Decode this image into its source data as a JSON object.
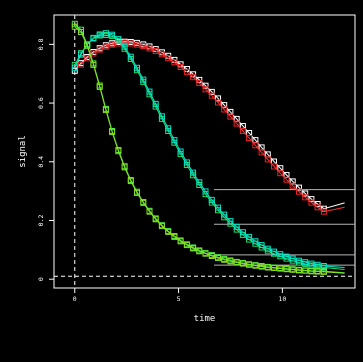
{
  "chart_data": {
    "type": "line",
    "title": "",
    "xlabel": "time",
    "ylabel": "signal",
    "xlim": [
      -1.0,
      13.5
    ],
    "ylim": [
      -0.03,
      0.9
    ],
    "grid": false,
    "xticks": [
      0,
      5,
      10
    ],
    "xtick_labels": [
      "0",
      "5",
      "10"
    ],
    "yticks": [
      0.0,
      0.2,
      0.4,
      0.6,
      0.8
    ],
    "ytick_labels": [
      "0",
      "0.2",
      "0.4",
      "0.6",
      "0.8"
    ],
    "reference_lines": [
      {
        "axis": "x",
        "value": 0
      },
      {
        "axis": "y",
        "value": 0.01
      }
    ],
    "colors": {
      "background": "#000000",
      "frame": "#ffffff",
      "reference_line": "#ffffff",
      "connector": "#b4b4b4"
    },
    "connectors": [
      {
        "y": 0.305
      },
      {
        "y": 0.187
      },
      {
        "y": 0.083
      },
      {
        "y": 0.048
      }
    ],
    "series": [
      {
        "line_color": "#ffffff",
        "marker_color": "#ffffff",
        "x": [
          0.0,
          0.3,
          0.6,
          0.9,
          1.2,
          1.5,
          1.8,
          2.1,
          2.4,
          2.7,
          3.0,
          3.3,
          3.6,
          3.9,
          4.2,
          4.5,
          4.8,
          5.1,
          5.4,
          5.7,
          6.0,
          6.3,
          6.6,
          6.9,
          7.2,
          7.5,
          7.8,
          8.1,
          8.4,
          8.7,
          9.0,
          9.3,
          9.6,
          9.9,
          10.2,
          10.5,
          10.8,
          11.1,
          11.4,
          11.7,
          12.0
        ],
        "y": [
          0.71,
          0.736,
          0.757,
          0.774,
          0.787,
          0.797,
          0.804,
          0.808,
          0.809,
          0.808,
          0.805,
          0.8,
          0.793,
          0.784,
          0.773,
          0.761,
          0.747,
          0.732,
          0.716,
          0.698,
          0.679,
          0.659,
          0.638,
          0.616,
          0.593,
          0.57,
          0.546,
          0.522,
          0.498,
          0.474,
          0.449,
          0.425,
          0.401,
          0.378,
          0.355,
          0.333,
          0.312,
          0.292,
          0.273,
          0.256,
          0.24
        ],
        "line_extend": {
          "x": 13.0,
          "y": 0.26
        }
      },
      {
        "line_color": "#ff3333",
        "marker_color": "#ee2222",
        "x": [
          0.3,
          0.6,
          0.9,
          1.2,
          1.5,
          1.8,
          2.1,
          2.4,
          2.7,
          3.0,
          3.3,
          3.6,
          3.9,
          4.2,
          4.5,
          4.8,
          5.1,
          5.4,
          5.7,
          6.0,
          6.3,
          6.6,
          6.9,
          7.2,
          7.5,
          7.8,
          8.1,
          8.4,
          8.7,
          9.0,
          9.3,
          9.6,
          9.9,
          10.2,
          10.5,
          10.8,
          11.1,
          11.4,
          11.7,
          12.0
        ],
        "y": [
          0.731,
          0.752,
          0.769,
          0.782,
          0.792,
          0.799,
          0.803,
          0.804,
          0.803,
          0.799,
          0.794,
          0.786,
          0.777,
          0.766,
          0.753,
          0.739,
          0.723,
          0.706,
          0.688,
          0.668,
          0.647,
          0.625,
          0.602,
          0.578,
          0.554,
          0.53,
          0.505,
          0.481,
          0.456,
          0.432,
          0.408,
          0.384,
          0.361,
          0.339,
          0.318,
          0.298,
          0.279,
          0.261,
          0.245,
          0.23
        ],
        "line_extend": {
          "x": 13.0,
          "y": 0.245
        }
      },
      {
        "line_color": "#22dd66",
        "marker_color": "#22dd66",
        "x": [
          0.0,
          0.3,
          0.6,
          0.9,
          1.2,
          1.5,
          1.8,
          2.1,
          2.4,
          2.7,
          3.0,
          3.3,
          3.6,
          3.9,
          4.2,
          4.5,
          4.8,
          5.1,
          5.4,
          5.7,
          6.0,
          6.3,
          6.6,
          6.9,
          7.2,
          7.5,
          7.8,
          8.1,
          8.4,
          8.7,
          9.0,
          9.3,
          9.6,
          9.9,
          10.2,
          10.5,
          10.8,
          11.1,
          11.4,
          11.7,
          12.0
        ],
        "y": [
          0.73,
          0.77,
          0.8,
          0.82,
          0.83,
          0.832,
          0.828,
          0.812,
          0.785,
          0.75,
          0.712,
          0.672,
          0.63,
          0.588,
          0.546,
          0.505,
          0.465,
          0.426,
          0.389,
          0.354,
          0.321,
          0.29,
          0.261,
          0.235,
          0.211,
          0.189,
          0.169,
          0.151,
          0.135,
          0.121,
          0.108,
          0.097,
          0.087,
          0.078,
          0.07,
          0.063,
          0.057,
          0.052,
          0.047,
          0.043,
          0.04
        ],
        "line_extend": {
          "x": 13.0,
          "y": 0.033
        }
      },
      {
        "line_color": "#00e5cc",
        "marker_color": "#00e5cc",
        "x": [
          0.0,
          0.3,
          0.6,
          0.9,
          1.2,
          1.5,
          1.8,
          2.1,
          2.4,
          2.7,
          3.0,
          3.3,
          3.6,
          3.9,
          4.2,
          4.5,
          4.8,
          5.1,
          5.4,
          5.7,
          6.0,
          6.3,
          6.6,
          6.9,
          7.2,
          7.5,
          7.8,
          8.1,
          8.4,
          8.7,
          9.0,
          9.3,
          9.6,
          9.9,
          10.2,
          10.5,
          10.8,
          11.1,
          11.4,
          11.7,
          12.0
        ],
        "y": [
          0.72,
          0.765,
          0.8,
          0.822,
          0.834,
          0.838,
          0.833,
          0.818,
          0.792,
          0.758,
          0.72,
          0.68,
          0.639,
          0.597,
          0.555,
          0.514,
          0.474,
          0.435,
          0.398,
          0.363,
          0.33,
          0.299,
          0.27,
          0.244,
          0.22,
          0.198,
          0.178,
          0.16,
          0.144,
          0.129,
          0.116,
          0.104,
          0.094,
          0.085,
          0.077,
          0.07,
          0.063,
          0.058,
          0.053,
          0.049,
          0.045
        ],
        "line_extend": {
          "x": 13.0,
          "y": 0.04
        }
      },
      {
        "line_color": "#44ee44",
        "marker_color": "#44ee44",
        "x": [
          0.0,
          0.3,
          0.6,
          0.9,
          1.2,
          1.5,
          1.8,
          2.1,
          2.4,
          2.7,
          3.0,
          3.3,
          3.6,
          3.9,
          4.2,
          4.5,
          4.8,
          5.1,
          5.4,
          5.7,
          6.0,
          6.3,
          6.6,
          6.9,
          7.2,
          7.5,
          7.8,
          8.1,
          8.4,
          8.7,
          9.0,
          9.3,
          9.6,
          9.9,
          10.2,
          10.5,
          10.8,
          11.1,
          11.4,
          11.7,
          12.0
        ],
        "y": [
          0.87,
          0.85,
          0.8,
          0.735,
          0.66,
          0.58,
          0.505,
          0.44,
          0.385,
          0.338,
          0.298,
          0.263,
          0.233,
          0.207,
          0.184,
          0.164,
          0.147,
          0.132,
          0.119,
          0.108,
          0.098,
          0.089,
          0.082,
          0.075,
          0.069,
          0.064,
          0.059,
          0.055,
          0.051,
          0.048,
          0.045,
          0.042,
          0.04,
          0.038,
          0.036,
          0.034,
          0.032,
          0.03,
          0.029,
          0.028,
          0.027
        ],
        "line_extend": {
          "x": 13.0,
          "y": 0.022
        }
      },
      {
        "line_color": "#88dd22",
        "marker_color": "#88dd22",
        "x": [
          0.0,
          0.3,
          0.6,
          0.9,
          1.2,
          1.5,
          1.8,
          2.1,
          2.4,
          2.7,
          3.0,
          3.3,
          3.6,
          3.9,
          4.2,
          4.5,
          4.8,
          5.1,
          5.4,
          5.7,
          6.0,
          6.3,
          6.6,
          6.9,
          7.2,
          7.5,
          7.8,
          8.1,
          8.4,
          8.7,
          9.0,
          9.3,
          9.6,
          9.9,
          10.2,
          10.5,
          10.8,
          11.1,
          11.4,
          11.7,
          12.0
        ],
        "y": [
          0.86,
          0.842,
          0.795,
          0.73,
          0.655,
          0.576,
          0.501,
          0.436,
          0.381,
          0.334,
          0.294,
          0.26,
          0.23,
          0.204,
          0.181,
          0.161,
          0.144,
          0.129,
          0.116,
          0.105,
          0.095,
          0.087,
          0.079,
          0.072,
          0.066,
          0.061,
          0.057,
          0.053,
          0.049,
          0.046,
          0.043,
          0.04,
          0.038,
          0.036,
          0.034,
          0.032,
          0.03,
          0.029,
          0.027,
          0.026,
          0.025
        ],
        "line_extend": {
          "x": 13.0,
          "y": 0.02
        }
      }
    ]
  }
}
